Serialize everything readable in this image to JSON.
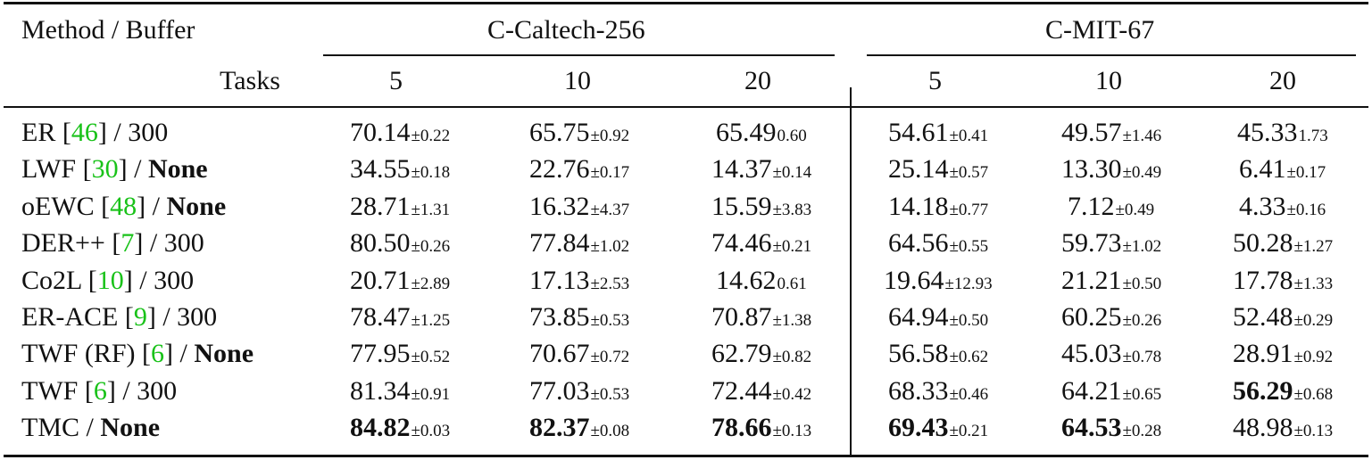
{
  "header": {
    "method_buffer": "Method / Buffer",
    "tasks": "Tasks",
    "groups": [
      {
        "name": "C-Caltech-256",
        "tasks": [
          "5",
          "10",
          "20"
        ]
      },
      {
        "name": "C-MIT-67",
        "tasks": [
          "5",
          "10",
          "20"
        ]
      }
    ]
  },
  "rows": [
    {
      "method": "ER",
      "cite": "46",
      "buffer": "300",
      "buffer_bold": false,
      "cells": [
        {
          "v": "70.14",
          "sd": "±0.22",
          "bold": false
        },
        {
          "v": "65.75",
          "sd": "±0.92",
          "bold": false
        },
        {
          "v": "65.49",
          "sd": "0.60",
          "bold": false
        },
        {
          "v": "54.61",
          "sd": "±0.41",
          "bold": false
        },
        {
          "v": "49.57",
          "sd": "±1.46",
          "bold": false
        },
        {
          "v": "45.33",
          "sd": "1.73",
          "bold": false
        }
      ]
    },
    {
      "method": "LWF",
      "cite": "30",
      "buffer": "None",
      "buffer_bold": true,
      "cells": [
        {
          "v": "34.55",
          "sd": "±0.18",
          "bold": false
        },
        {
          "v": "22.76",
          "sd": "±0.17",
          "bold": false
        },
        {
          "v": "14.37",
          "sd": "±0.14",
          "bold": false
        },
        {
          "v": "25.14",
          "sd": "±0.57",
          "bold": false
        },
        {
          "v": "13.30",
          "sd": "±0.49",
          "bold": false
        },
        {
          "v": "6.41",
          "sd": "±0.17",
          "bold": false
        }
      ]
    },
    {
      "method": "oEWC",
      "cite": "48",
      "buffer": "None",
      "buffer_bold": true,
      "cells": [
        {
          "v": "28.71",
          "sd": "±1.31",
          "bold": false
        },
        {
          "v": "16.32",
          "sd": "±4.37",
          "bold": false
        },
        {
          "v": "15.59",
          "sd": "±3.83",
          "bold": false
        },
        {
          "v": "14.18",
          "sd": "±0.77",
          "bold": false
        },
        {
          "v": "7.12",
          "sd": "±0.49",
          "bold": false
        },
        {
          "v": "4.33",
          "sd": "±0.16",
          "bold": false
        }
      ]
    },
    {
      "method": "DER++",
      "cite": "7",
      "buffer": "300",
      "buffer_bold": false,
      "cells": [
        {
          "v": "80.50",
          "sd": "±0.26",
          "bold": false
        },
        {
          "v": "77.84",
          "sd": "±1.02",
          "bold": false
        },
        {
          "v": "74.46",
          "sd": "±0.21",
          "bold": false
        },
        {
          "v": "64.56",
          "sd": "±0.55",
          "bold": false
        },
        {
          "v": "59.73",
          "sd": "±1.02",
          "bold": false
        },
        {
          "v": "50.28",
          "sd": "±1.27",
          "bold": false
        }
      ]
    },
    {
      "method": "Co2L",
      "cite": "10",
      "buffer": "300",
      "buffer_bold": false,
      "cells": [
        {
          "v": "20.71",
          "sd": "±2.89",
          "bold": false
        },
        {
          "v": "17.13",
          "sd": "±2.53",
          "bold": false
        },
        {
          "v": "14.62",
          "sd": "0.61",
          "bold": false
        },
        {
          "v": "19.64",
          "sd": "±12.93",
          "bold": false
        },
        {
          "v": "21.21",
          "sd": "±0.50",
          "bold": false
        },
        {
          "v": "17.78",
          "sd": "±1.33",
          "bold": false
        }
      ]
    },
    {
      "method": "ER-ACE",
      "cite": "9",
      "buffer": "300",
      "buffer_bold": false,
      "cells": [
        {
          "v": "78.47",
          "sd": "±1.25",
          "bold": false
        },
        {
          "v": "73.85",
          "sd": "±0.53",
          "bold": false
        },
        {
          "v": "70.87",
          "sd": "±1.38",
          "bold": false
        },
        {
          "v": "64.94",
          "sd": "±0.50",
          "bold": false
        },
        {
          "v": "60.25",
          "sd": "±0.26",
          "bold": false
        },
        {
          "v": "52.48",
          "sd": "±0.29",
          "bold": false
        }
      ]
    },
    {
      "method": "TWF (RF)",
      "cite": "6",
      "buffer": "None",
      "buffer_bold": true,
      "cells": [
        {
          "v": "77.95",
          "sd": "±0.52",
          "bold": false
        },
        {
          "v": "70.67",
          "sd": "±0.72",
          "bold": false
        },
        {
          "v": "62.79",
          "sd": "±0.82",
          "bold": false
        },
        {
          "v": "56.58",
          "sd": "±0.62",
          "bold": false
        },
        {
          "v": "45.03",
          "sd": "±0.78",
          "bold": false
        },
        {
          "v": "28.91",
          "sd": "±0.92",
          "bold": false
        }
      ]
    },
    {
      "method": "TWF",
      "cite": "6",
      "buffer": "300",
      "buffer_bold": false,
      "cells": [
        {
          "v": "81.34",
          "sd": "±0.91",
          "bold": false
        },
        {
          "v": "77.03",
          "sd": "±0.53",
          "bold": false
        },
        {
          "v": "72.44",
          "sd": "±0.42",
          "bold": false
        },
        {
          "v": "68.33",
          "sd": "±0.46",
          "bold": false
        },
        {
          "v": "64.21",
          "sd": "±0.65",
          "bold": false
        },
        {
          "v": "56.29",
          "sd": "±0.68",
          "bold": true
        }
      ]
    },
    {
      "method": "TMC",
      "cite": "",
      "buffer": "None",
      "buffer_bold": true,
      "cells": [
        {
          "v": "84.82",
          "sd": "±0.03",
          "bold": true
        },
        {
          "v": "82.37",
          "sd": "±0.08",
          "bold": true
        },
        {
          "v": "78.66",
          "sd": "±0.13",
          "bold": true
        },
        {
          "v": "69.43",
          "sd": "±0.21",
          "bold": true
        },
        {
          "v": "64.53",
          "sd": "±0.28",
          "bold": true
        },
        {
          "v": "48.98",
          "sd": "±0.13",
          "bold": false
        }
      ]
    }
  ]
}
